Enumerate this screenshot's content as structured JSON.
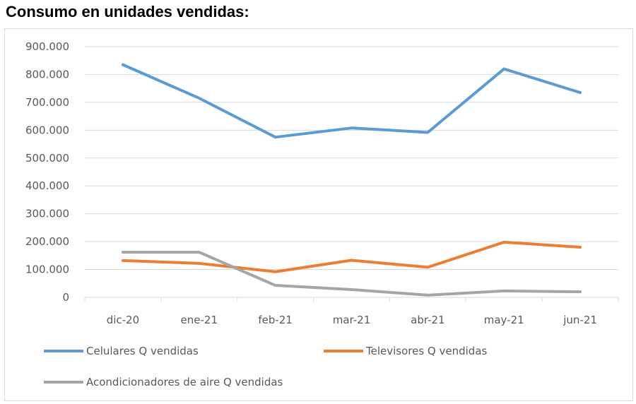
{
  "title": "Consumo en unidades vendidas:",
  "chart_data": {
    "type": "line",
    "title": "",
    "xlabel": "",
    "ylabel": "",
    "categories": [
      "dic-20",
      "ene-21",
      "feb-21",
      "mar-21",
      "abr-21",
      "may-21",
      "jun-21"
    ],
    "ylim": [
      0,
      900000
    ],
    "yticks": [
      "0",
      "100.000",
      "200.000",
      "300.000",
      "400.000",
      "500.000",
      "600.000",
      "700.000",
      "800.000",
      "900.000"
    ],
    "grid": true,
    "legend_position": "bottom",
    "series": [
      {
        "name": "Celulares Q vendidas",
        "color": "#5b9bd5",
        "values": [
          835000,
          715000,
          575000,
          608000,
          592000,
          820000,
          735000
        ]
      },
      {
        "name": "Televisores Q vendidas",
        "color": "#ed7d31",
        "values": [
          132000,
          122000,
          92000,
          133000,
          108000,
          198000,
          180000
        ]
      },
      {
        "name": "Acondicionadores de aire Q vendidas",
        "color": "#a5a5a5",
        "values": [
          162000,
          162000,
          43000,
          28000,
          8000,
          23000,
          20000
        ]
      }
    ]
  }
}
